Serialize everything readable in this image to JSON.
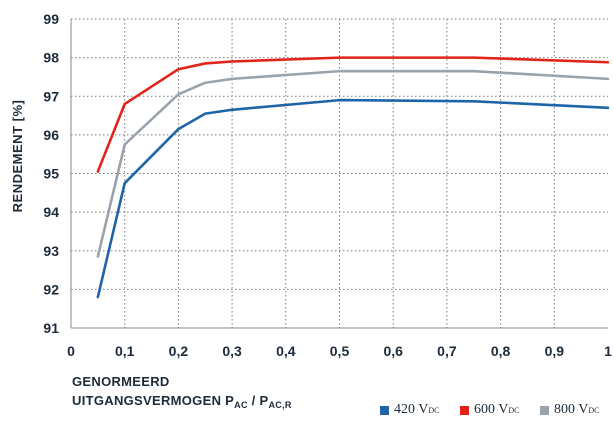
{
  "chart_data": {
    "type": "line",
    "ylabel": "RENDEMENT [%]",
    "xlabel_line1": "GENORMEERD",
    "xlabel_line2_main": "UITGANGSVERMOGEN P",
    "xlabel_sub1": "AC",
    "xlabel_sep": " / P",
    "xlabel_sub2": "AC,R",
    "xlim": [
      0,
      1
    ],
    "ylim": [
      91,
      99
    ],
    "xticks": [
      "0",
      "0,1",
      "0,2",
      "0,3",
      "0,4",
      "0,5",
      "0,6",
      "0,7",
      "0,8",
      "0,9",
      "1"
    ],
    "yticks": [
      "91",
      "92",
      "93",
      "94",
      "95",
      "96",
      "97",
      "98",
      "99"
    ],
    "grid": true,
    "x": [
      0.05,
      0.1,
      0.2,
      0.25,
      0.3,
      0.5,
      0.75,
      1.0
    ],
    "series": [
      {
        "name": "420 V",
        "sub": "DC",
        "color": "#1f64a8",
        "values": [
          91.8,
          94.75,
          96.15,
          96.55,
          96.65,
          96.9,
          96.87,
          96.7
        ]
      },
      {
        "name": "600 V",
        "sub": "DC",
        "color": "#e2231a",
        "values": [
          95.05,
          96.8,
          97.7,
          97.85,
          97.9,
          98.0,
          98.0,
          97.88
        ]
      },
      {
        "name": "800 V",
        "sub": "DC",
        "color": "#9aa3ab",
        "values": [
          92.85,
          95.75,
          97.05,
          97.35,
          97.45,
          97.65,
          97.65,
          97.45
        ]
      }
    ]
  }
}
